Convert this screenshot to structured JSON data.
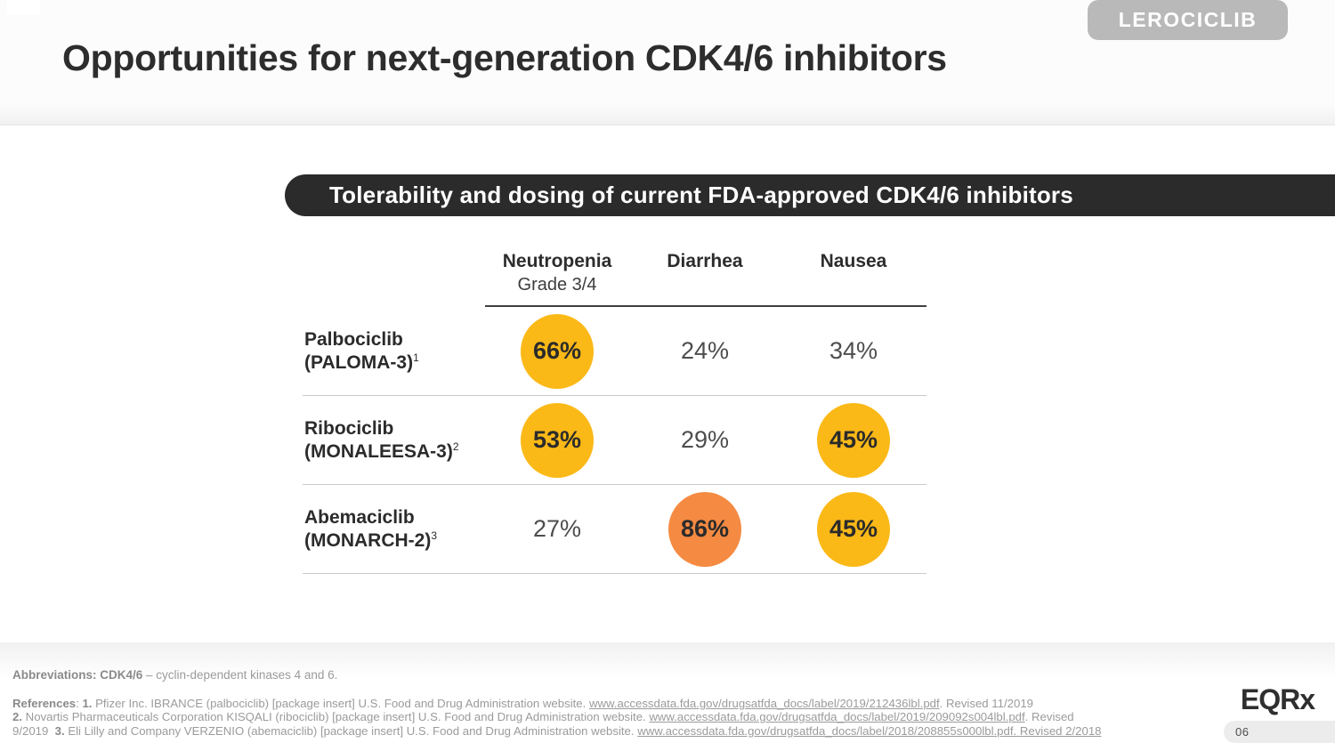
{
  "badge": {
    "label": "LEROCICLIB"
  },
  "title": "Opportunities for next-generation CDK4/6 inhibitors",
  "banner": {
    "title": "Tolerability and dosing of current FDA-approved CDK4/6 inhibitors"
  },
  "table": {
    "columns": [
      {
        "label": "Neutropenia",
        "sub": "Grade 3/4"
      },
      {
        "label": "Diarrhea",
        "sub": ""
      },
      {
        "label": "Nausea",
        "sub": ""
      }
    ],
    "rows": [
      {
        "drug": "Palbociclib",
        "trial": "(PALOMA-3)",
        "ref_sup": "1",
        "cells": [
          {
            "value": "66%",
            "highlight": "yellow"
          },
          {
            "value": "24%",
            "highlight": "none"
          },
          {
            "value": "34%",
            "highlight": "none"
          }
        ]
      },
      {
        "drug": "Ribociclib",
        "trial": "(MONALEESA-3)",
        "ref_sup": "2",
        "cells": [
          {
            "value": "53%",
            "highlight": "yellow"
          },
          {
            "value": "29%",
            "highlight": "none"
          },
          {
            "value": "45%",
            "highlight": "yellow"
          }
        ]
      },
      {
        "drug": "Abemaciclib",
        "trial": "(MONARCH-2)",
        "ref_sup": "3",
        "cells": [
          {
            "value": "27%",
            "highlight": "none"
          },
          {
            "value": "86%",
            "highlight": "orange"
          },
          {
            "value": "45%",
            "highlight": "yellow"
          }
        ]
      }
    ]
  },
  "chart_data": {
    "type": "table",
    "title": "Tolerability and dosing of current FDA-approved CDK4/6 inhibitors",
    "columns": [
      "Neutropenia Grade 3/4",
      "Diarrhea",
      "Nausea"
    ],
    "unit": "%",
    "rows": [
      {
        "label": "Palbociclib (PALOMA-3)",
        "values": [
          66,
          24,
          34
        ],
        "highlighted_columns": [
          "Neutropenia Grade 3/4"
        ]
      },
      {
        "label": "Ribociclib (MONALEESA-3)",
        "values": [
          53,
          29,
          45
        ],
        "highlighted_columns": [
          "Neutropenia Grade 3/4",
          "Nausea"
        ]
      },
      {
        "label": "Abemaciclib (MONARCH-2)",
        "values": [
          27,
          86,
          45
        ],
        "highlighted_columns": [
          "Diarrhea",
          "Nausea"
        ]
      }
    ]
  },
  "footnotes": {
    "abbreviations_segments": [
      {
        "t": "Abbreviations: CDK4/6",
        "b": true
      },
      {
        "t": " – cyclin-dependent kinases 4 and 6."
      }
    ],
    "references_lines": [
      [
        {
          "t": "References",
          "b": true
        },
        {
          "t": ": "
        },
        {
          "t": "1.",
          "b": true
        },
        {
          "t": " Pfizer Inc. IBRANCE (palbociclib) [package insert] U.S. Food and Drug Administration website. "
        },
        {
          "t": "www.accessdata.fda.gov/drugsatfda_docs/label/2019/212436lbl.pdf",
          "u": true,
          "link": true
        },
        {
          "t": ". Revised 11/2019"
        }
      ],
      [
        {
          "t": "2.",
          "b": true
        },
        {
          "t": " Novartis Pharmaceuticals Corporation KISQALI (ribociclib) [package insert] U.S. Food and Drug Administration website. "
        },
        {
          "t": "www.accessdata.fda.gov/drugsatfda_docs/label/2019/209092s004lbl.pdf",
          "u": true,
          "link": true
        },
        {
          "t": ". Revised"
        }
      ],
      [
        {
          "t": "9/2019  "
        },
        {
          "t": "3.",
          "b": true
        },
        {
          "t": " Eli Lilly and Company VERZENIO (abemaciclib) [package insert] U.S. Food and Drug Administration website. "
        },
        {
          "t": "www.accessdata.fda.gov/drugsatfda_docs/label/2018/208855s000lbl.pdf.",
          "u": true,
          "link": true
        },
        {
          "t": " Revised 2/2018",
          "u": true
        }
      ]
    ]
  },
  "footer": {
    "logo": "EQRx",
    "page_number": "06"
  },
  "colors": {
    "highlight_yellow": "#fbb917",
    "highlight_orange": "#f58a42",
    "banner_background": "#2b2b2b",
    "badge_gray": "#b9b9b9",
    "title_text": "#2d2d2d",
    "footnote_gray": "#9b9b9b"
  }
}
